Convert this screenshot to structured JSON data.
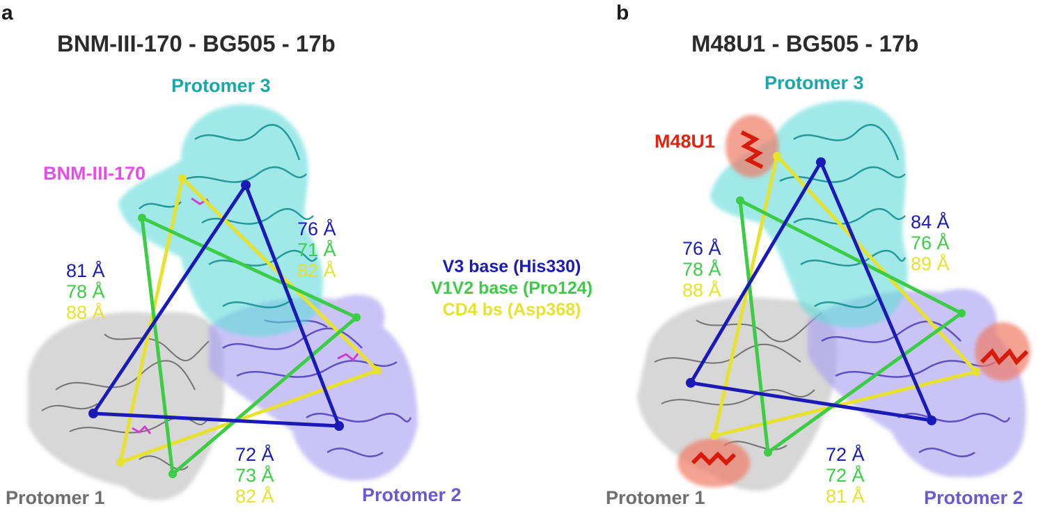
{
  "colors": {
    "v3": "#1a1ab8",
    "v1v2": "#3ccc45",
    "cd4": "#e6e22e",
    "protomer1": "#6e6e6e",
    "protomer2": "#6a5acd",
    "protomer3": "#17a9a9",
    "ligand_a": "#e64ce6",
    "ligand_b": "#e8200e"
  },
  "legend": {
    "v3": "V3 base (His330)",
    "v1v2": "V1V2 base (Pro124)",
    "cd4": "CD4 bs (Asp368)"
  },
  "panel_a": {
    "letter": "a",
    "title": "BNM-III-170 - BG505 - 17b",
    "ligand": "BNM-III-170",
    "protomer1": "Protomer 1",
    "protomer2": "Protomer 2",
    "protomer3": "Protomer 3",
    "dist_left": [
      "81 Å",
      "78 Å",
      "88 Å"
    ],
    "dist_right": [
      "76 Å",
      "71 Å",
      "82 Å"
    ],
    "dist_bottom": [
      "72 Å",
      "73 Å",
      "82 Å"
    ]
  },
  "panel_b": {
    "letter": "b",
    "title": "M48U1 - BG505 - 17b",
    "ligand": "M48U1",
    "protomer1": "Protomer 1",
    "protomer2": "Protomer 2",
    "protomer3": "Protomer 3",
    "dist_left": [
      "76 Å",
      "78 Å",
      "88 Å"
    ],
    "dist_right": [
      "84 Å",
      "76 Å",
      "89 Å"
    ],
    "dist_bottom": [
      "72 Å",
      "72 Å",
      "81 Å"
    ]
  }
}
